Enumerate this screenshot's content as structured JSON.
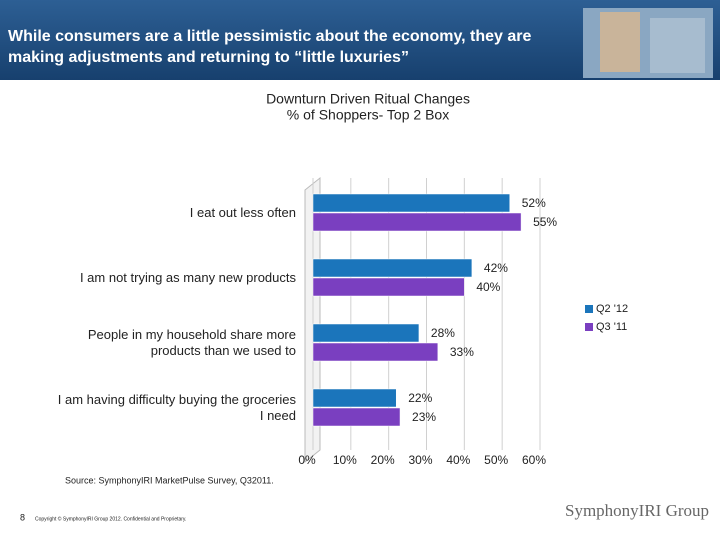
{
  "slide": {
    "title": "While consumers are a little pessimistic about the economy, they are making adjustments and returning to “little luxuries”",
    "source": "Source:  SymphonyIRI MarketPulse Survey, Q32011.",
    "page_number": "8",
    "copyright": "Copyright © SymphonyIRI Group 2012. Confidential and Proprietary.",
    "logo": "SymphonyIRI Group"
  },
  "chart_data": {
    "type": "bar",
    "orientation": "horizontal",
    "title": "Downturn Driven Ritual Changes",
    "subtitle": "% of Shoppers- Top 2 Box",
    "categories": [
      "I eat out less often",
      "I am not trying as many new products",
      "People in my household share more products than we used to",
      "I am having difficulty buying the groceries I need"
    ],
    "series": [
      {
        "name": "Q2 '12",
        "color": "#1b75bb",
        "values": [
          52,
          42,
          28,
          22
        ],
        "value_labels": [
          "52%",
          "42%",
          "28%",
          "22%"
        ]
      },
      {
        "name": "Q3 '11",
        "color": "#7a3fc0",
        "values": [
          55,
          40,
          33,
          23
        ],
        "value_labels": [
          "55%",
          "40%",
          "33%",
          "23%"
        ]
      }
    ],
    "xlim": [
      0,
      60
    ],
    "xticks": [
      {
        "value": 0,
        "label": "0%"
      },
      {
        "value": 10,
        "label": "10%"
      },
      {
        "value": 20,
        "label": "20%"
      },
      {
        "value": 30,
        "label": "30%"
      },
      {
        "value": 40,
        "label": "40%"
      },
      {
        "value": 50,
        "label": "50%"
      },
      {
        "value": 60,
        "label": "60%"
      }
    ],
    "grid": true,
    "legend": "right"
  }
}
